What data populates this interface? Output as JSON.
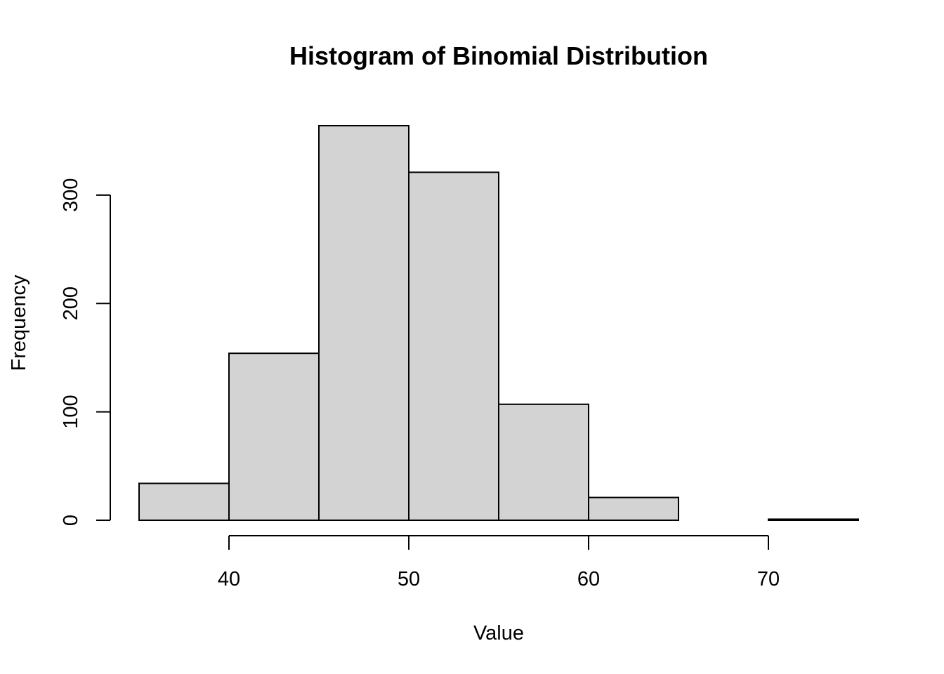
{
  "chart_data": {
    "type": "bar",
    "title": "Histogram of Binomial Distribution",
    "xlabel": "Value",
    "ylabel": "Frequency",
    "bins": [
      {
        "start": 35,
        "end": 40,
        "count": 34
      },
      {
        "start": 40,
        "end": 45,
        "count": 154
      },
      {
        "start": 45,
        "end": 50,
        "count": 364
      },
      {
        "start": 50,
        "end": 55,
        "count": 321
      },
      {
        "start": 55,
        "end": 60,
        "count": 107
      },
      {
        "start": 60,
        "end": 65,
        "count": 21
      },
      {
        "start": 65,
        "end": 70,
        "count": 0
      },
      {
        "start": 70,
        "end": 75,
        "count": 1
      }
    ],
    "xlim": [
      35,
      75
    ],
    "ylim": [
      0,
      364
    ],
    "x_ticks": [
      40,
      50,
      60,
      70
    ],
    "y_ticks": [
      0,
      100,
      200,
      300
    ],
    "grid": false,
    "legend": "none",
    "colors": {
      "bar_fill": "#d3d3d3",
      "bar_stroke": "#000000"
    }
  }
}
